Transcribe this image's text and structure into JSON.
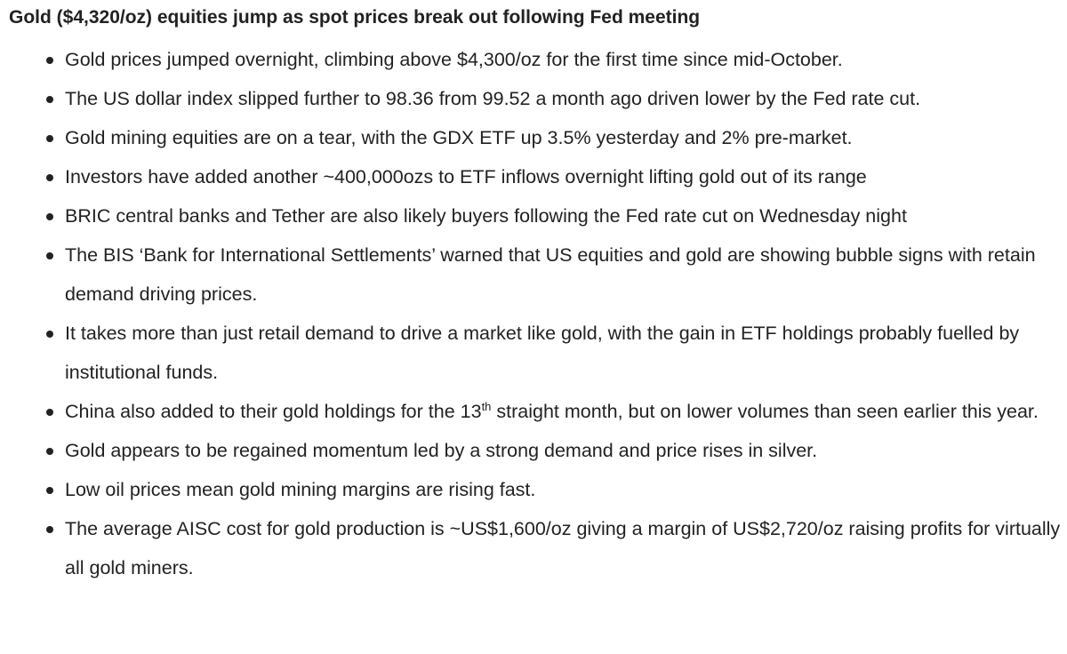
{
  "headline": "Gold ($4,320/oz) equities jump as spot prices break out following Fed meeting",
  "bullets": [
    {
      "text": "Gold prices jumped overnight, climbing above $4,300/oz for the first time since mid-October."
    },
    {
      "text": "The US dollar index slipped further to 98.36 from 99.52 a month ago driven lower by the Fed rate cut."
    },
    {
      "text": "Gold mining equities are on a tear, with the GDX ETF up 3.5% yesterday and 2% pre-market."
    },
    {
      "text": "Investors have added another ~400,000ozs to ETF inflows overnight lifting gold out of its range"
    },
    {
      "text": "BRIC central banks and Tether are also likely buyers following the Fed rate cut on Wednesday night"
    },
    {
      "text": "The BIS ‘Bank for International Settlements’ warned that US equities and gold are showing bubble signs with retain demand driving prices."
    },
    {
      "text": "It takes more than just retail demand to drive a market like gold, with the gain in ETF holdings probably fuelled by institutional funds."
    },
    {
      "text_before": "China also added to their gold holdings for the 13",
      "sup": "th",
      "text_after": " straight month, but on lower volumes than seen earlier this year."
    },
    {
      "text": "Gold appears to be regained momentum led by a strong demand and price rises in silver."
    },
    {
      "text": "Low oil prices mean gold mining margins are rising fast."
    },
    {
      "text": "The average AISC cost for gold production is ~US$1,600/oz giving a margin of US$2,720/oz raising profits for virtually all gold miners."
    }
  ]
}
